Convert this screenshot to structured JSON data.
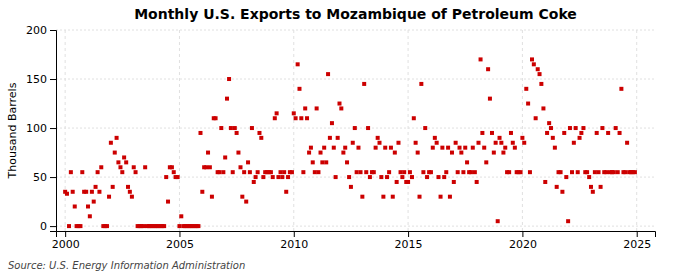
{
  "chart_data": {
    "type": "scatter",
    "title": "Monthly U.S. Exports to Mozambique of Petroleum Coke",
    "ylabel": "Thousand Barrels",
    "source": "Source: U.S. Energy Information Administration",
    "xlim": [
      1999.6,
      2025.8
    ],
    "ylim": [
      -5,
      200
    ],
    "xticks": [
      2000,
      2005,
      2010,
      2015,
      2020,
      2025
    ],
    "yticks": [
      0,
      50,
      100,
      150,
      200
    ],
    "grid": true,
    "color": "#cc0000",
    "marker": "square",
    "x": [
      2000.0,
      2000.08,
      2000.17,
      2000.25,
      2000.33,
      2000.42,
      2000.5,
      2000.58,
      2000.67,
      2000.75,
      2000.83,
      2000.92,
      2001.0,
      2001.08,
      2001.17,
      2001.25,
      2001.33,
      2001.42,
      2001.5,
      2001.58,
      2001.67,
      2001.75,
      2001.83,
      2001.92,
      2002.0,
      2002.08,
      2002.17,
      2002.25,
      2002.33,
      2002.42,
      2002.5,
      2002.58,
      2002.67,
      2002.75,
      2002.83,
      2002.92,
      2003.0,
      2003.08,
      2003.17,
      2003.25,
      2003.33,
      2003.42,
      2003.5,
      2003.58,
      2003.67,
      2003.75,
      2003.83,
      2003.92,
      2004.0,
      2004.08,
      2004.17,
      2004.25,
      2004.33,
      2004.42,
      2004.5,
      2004.58,
      2004.67,
      2004.75,
      2004.83,
      2004.92,
      2005.0,
      2005.08,
      2005.17,
      2005.25,
      2005.33,
      2005.42,
      2005.5,
      2005.58,
      2005.67,
      2005.75,
      2005.83,
      2005.92,
      2006.0,
      2006.08,
      2006.17,
      2006.25,
      2006.33,
      2006.42,
      2006.5,
      2006.58,
      2006.67,
      2006.75,
      2006.83,
      2006.92,
      2007.0,
      2007.08,
      2007.17,
      2007.25,
      2007.33,
      2007.42,
      2007.5,
      2007.58,
      2007.67,
      2007.75,
      2007.83,
      2007.92,
      2008.0,
      2008.08,
      2008.17,
      2008.25,
      2008.33,
      2008.42,
      2008.5,
      2008.58,
      2008.67,
      2008.75,
      2008.83,
      2008.92,
      2009.0,
      2009.08,
      2009.17,
      2009.25,
      2009.33,
      2009.42,
      2009.5,
      2009.58,
      2009.67,
      2009.75,
      2009.83,
      2009.92,
      2010.0,
      2010.08,
      2010.17,
      2010.25,
      2010.33,
      2010.42,
      2010.5,
      2010.58,
      2010.67,
      2010.75,
      2010.83,
      2010.92,
      2011.0,
      2011.08,
      2011.17,
      2011.25,
      2011.33,
      2011.42,
      2011.5,
      2011.58,
      2011.67,
      2011.75,
      2011.83,
      2011.92,
      2012.0,
      2012.08,
      2012.17,
      2012.25,
      2012.33,
      2012.42,
      2012.5,
      2012.58,
      2012.67,
      2012.75,
      2012.83,
      2012.92,
      2013.0,
      2013.08,
      2013.17,
      2013.25,
      2013.33,
      2013.42,
      2013.5,
      2013.58,
      2013.67,
      2013.75,
      2013.83,
      2013.92,
      2014.0,
      2014.08,
      2014.17,
      2014.25,
      2014.33,
      2014.42,
      2014.5,
      2014.58,
      2014.67,
      2014.75,
      2014.83,
      2014.92,
      2015.0,
      2015.08,
      2015.17,
      2015.25,
      2015.33,
      2015.42,
      2015.5,
      2015.58,
      2015.67,
      2015.75,
      2015.83,
      2015.92,
      2016.0,
      2016.08,
      2016.17,
      2016.25,
      2016.33,
      2016.42,
      2016.5,
      2016.58,
      2016.67,
      2016.75,
      2016.83,
      2016.92,
      2017.0,
      2017.08,
      2017.17,
      2017.25,
      2017.33,
      2017.42,
      2017.5,
      2017.58,
      2017.67,
      2017.75,
      2017.83,
      2017.92,
      2018.0,
      2018.08,
      2018.17,
      2018.25,
      2018.33,
      2018.42,
      2018.5,
      2018.58,
      2018.67,
      2018.75,
      2018.83,
      2018.92,
      2019.0,
      2019.08,
      2019.17,
      2019.25,
      2019.33,
      2019.42,
      2019.5,
      2019.58,
      2019.67,
      2019.75,
      2019.83,
      2019.92,
      2020.0,
      2020.08,
      2020.17,
      2020.25,
      2020.33,
      2020.42,
      2020.5,
      2020.58,
      2020.67,
      2020.75,
      2020.83,
      2020.92,
      2021.0,
      2021.08,
      2021.17,
      2021.25,
      2021.33,
      2021.42,
      2021.5,
      2021.58,
      2021.67,
      2021.75,
      2021.83,
      2021.92,
      2022.0,
      2022.08,
      2022.17,
      2022.25,
      2022.33,
      2022.42,
      2022.5,
      2022.58,
      2022.67,
      2022.75,
      2022.83,
      2022.92,
      2023.0,
      2023.08,
      2023.17,
      2023.25,
      2023.33,
      2023.42,
      2023.5,
      2023.58,
      2023.67,
      2023.75,
      2023.83,
      2023.92,
      2024.0,
      2024.08,
      2024.17,
      2024.25,
      2024.33,
      2024.42,
      2024.5,
      2024.58,
      2024.67,
      2024.75,
      2024.83,
      2024.92
    ],
    "values": [
      35,
      33,
      0,
      55,
      35,
      20,
      0,
      0,
      0,
      55,
      35,
      35,
      20,
      10,
      35,
      25,
      40,
      55,
      35,
      60,
      0,
      0,
      0,
      30,
      85,
      40,
      75,
      90,
      65,
      60,
      55,
      70,
      65,
      40,
      35,
      30,
      60,
      55,
      0,
      0,
      0,
      0,
      60,
      0,
      0,
      0,
      0,
      0,
      0,
      0,
      0,
      0,
      0,
      50,
      25,
      60,
      60,
      55,
      50,
      50,
      0,
      10,
      0,
      0,
      0,
      0,
      0,
      0,
      0,
      0,
      0,
      95,
      35,
      60,
      60,
      75,
      60,
      30,
      110,
      110,
      55,
      55,
      100,
      55,
      70,
      130,
      150,
      100,
      55,
      100,
      95,
      75,
      60,
      30,
      55,
      25,
      65,
      55,
      100,
      45,
      50,
      55,
      95,
      90,
      50,
      55,
      55,
      55,
      55,
      50,
      110,
      115,
      50,
      55,
      50,
      55,
      35,
      50,
      55,
      55,
      115,
      110,
      165,
      140,
      110,
      55,
      120,
      110,
      75,
      80,
      65,
      55,
      120,
      55,
      75,
      65,
      80,
      65,
      155,
      90,
      105,
      80,
      50,
      90,
      125,
      120,
      75,
      80,
      65,
      50,
      40,
      85,
      100,
      55,
      80,
      55,
      30,
      145,
      55,
      100,
      50,
      55,
      55,
      80,
      90,
      85,
      50,
      30,
      80,
      50,
      55,
      80,
      30,
      75,
      45,
      85,
      55,
      50,
      55,
      45,
      45,
      55,
      50,
      110,
      85,
      75,
      30,
      145,
      55,
      100,
      50,
      55,
      55,
      80,
      90,
      85,
      50,
      30,
      80,
      50,
      55,
      80,
      30,
      75,
      45,
      85,
      55,
      80,
      75,
      55,
      80,
      65,
      55,
      55,
      80,
      55,
      45,
      85,
      170,
      95,
      80,
      65,
      160,
      130,
      95,
      75,
      85,
      5,
      90,
      85,
      75,
      80,
      55,
      55,
      95,
      85,
      80,
      55,
      55,
      55,
      90,
      85,
      140,
      125,
      55,
      170,
      165,
      110,
      160,
      155,
      145,
      120,
      45,
      95,
      105,
      100,
      90,
      80,
      40,
      55,
      55,
      35,
      95,
      50,
      5,
      100,
      55,
      85,
      100,
      55,
      90,
      95,
      100,
      55,
      55,
      50,
      40,
      35,
      55,
      95,
      55,
      40,
      100,
      55,
      55,
      95,
      55,
      55,
      55,
      100,
      55,
      95,
      140,
      55,
      55,
      85,
      55,
      55,
      55,
      55
    ]
  }
}
